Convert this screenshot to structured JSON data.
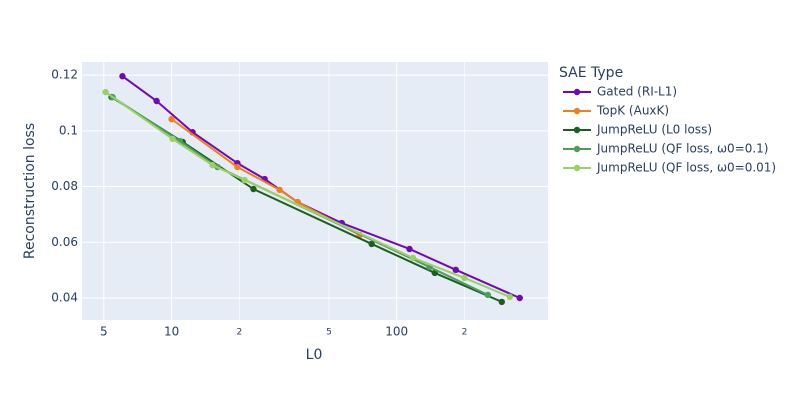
{
  "chart_data": {
    "type": "line",
    "xlabel": "L0",
    "ylabel": "Reconstruction loss",
    "legend_title": "SAE Type",
    "legend_position": "right",
    "x_log": true,
    "grid": true,
    "xlim": [
      4,
      470
    ],
    "ylim": [
      0.0321,
      0.1247
    ],
    "xticks": [
      5,
      10,
      {
        "value": 20,
        "label": "2"
      },
      {
        "value": 50,
        "label": "5"
      },
      100,
      {
        "value": 200,
        "label": "2"
      }
    ],
    "yticks": [
      0.04,
      0.06,
      0.08,
      0.1,
      0.12
    ],
    "series": [
      {
        "name": "Gated (RI-L1)",
        "color": "#7209b7",
        "x": [
          6.05,
          8.58,
          12.4,
          19.6,
          25.9,
          36.3,
          57,
          114,
          183,
          352
        ],
        "values": [
          0.1196,
          0.1107,
          0.0995,
          0.0884,
          0.0827,
          0.0744,
          0.0669,
          0.0576,
          0.0501,
          0.04
        ]
      },
      {
        "name": "TopK (AuxK)",
        "color": "#f07f1c",
        "x": [
          10,
          19.6,
          30.2,
          36.3,
          68.5
        ],
        "values": [
          0.1042,
          0.087,
          0.0788,
          0.0744,
          0.0626
        ]
      },
      {
        "name": "JumpReLU (L0 loss)",
        "color": "#1b5e20",
        "x": [
          5.41,
          11.2,
          23.1,
          77.4,
          147.6,
          293
        ],
        "values": [
          0.1121,
          0.096,
          0.0791,
          0.0594,
          0.049,
          0.0386
        ]
      },
      {
        "name": "JumpReLU (QF loss, ω0=0.1)",
        "color": "#4e9d5c",
        "x": [
          5.47,
          10.9,
          16,
          140,
          254
        ],
        "values": [
          0.1121,
          0.0963,
          0.087,
          0.0511,
          0.0411
        ]
      },
      {
        "name": "JumpReLU (QF loss, ω0=0.01)",
        "color": "#9bd164",
        "x": [
          5.09,
          10.1,
          15.2,
          21.1,
          118,
          200,
          318
        ],
        "values": [
          0.1139,
          0.0971,
          0.0877,
          0.0823,
          0.0544,
          0.0472,
          0.0404
        ]
      }
    ]
  }
}
